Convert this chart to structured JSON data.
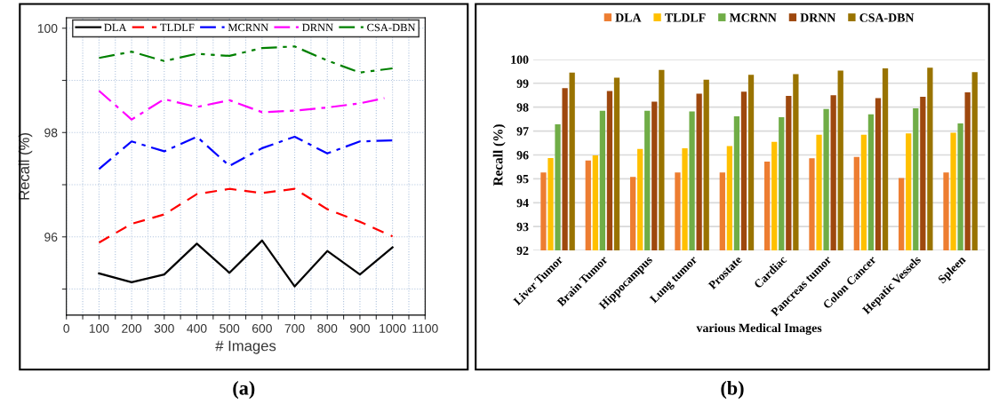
{
  "chart_data": [
    {
      "type": "line",
      "xlabel": "# Images",
      "ylabel": "Recall (%)",
      "annotations": [
        "(a)"
      ],
      "xlim": [
        0,
        1100
      ],
      "xticks": [
        0,
        {
          "value": 50,
          "label": null
        },
        100,
        {
          "value": 150,
          "label": null
        },
        200,
        {
          "value": 250,
          "label": null
        },
        300,
        {
          "value": 350,
          "label": null
        },
        400,
        {
          "value": 450,
          "label": null
        },
        500,
        {
          "value": 550,
          "label": null
        },
        600,
        {
          "value": 650,
          "label": null
        },
        700,
        {
          "value": 750,
          "label": null
        },
        800,
        {
          "value": 850,
          "label": null
        },
        900,
        {
          "value": 950,
          "label": null
        },
        1000,
        {
          "value": 1050,
          "label": null
        },
        1100
      ],
      "ylim": [
        94.5,
        100.2
      ],
      "yticks": [
        {
          "value": 95,
          "label": null
        },
        96,
        {
          "value": 97,
          "label": null
        },
        98,
        {
          "value": 99,
          "label": null
        },
        100
      ],
      "grid": true,
      "legend": "top",
      "marker": "none",
      "x": [
        100,
        200,
        300,
        400,
        500,
        600,
        700,
        800,
        900,
        1000
      ],
      "series": [
        {
          "name": "DLA",
          "color": "#000000",
          "line_style": "solid",
          "values": [
            95.3,
            95.13,
            95.28,
            95.87,
            95.31,
            95.93,
            95.05,
            95.73,
            95.28,
            95.8
          ]
        },
        {
          "name": "TLDLF",
          "color": "#ff0000",
          "line_style": "dashed",
          "values": [
            95.89,
            96.25,
            96.43,
            96.82,
            96.92,
            96.84,
            96.92,
            96.53,
            96.29,
            96.01
          ]
        },
        {
          "name": "MCRNN",
          "color": "#0000ff",
          "line_style": "dashdot",
          "values": [
            97.3,
            97.83,
            97.64,
            97.92,
            97.36,
            97.7,
            97.92,
            97.6,
            97.83,
            97.85
          ]
        },
        {
          "name": "DRNN",
          "color": "#ff00ff",
          "line_style": "dashdot",
          "x": [
            100,
            200,
            300,
            400,
            500,
            600,
            700,
            800,
            900,
            975
          ],
          "values": [
            98.8,
            98.25,
            98.64,
            98.49,
            98.62,
            98.39,
            98.42,
            98.48,
            98.56,
            98.66
          ]
        },
        {
          "name": "CSA-DBN",
          "color": "#008000",
          "line_style": "dashdotdot",
          "values": [
            99.43,
            99.55,
            99.37,
            99.51,
            99.47,
            99.62,
            99.65,
            99.38,
            99.15,
            99.23
          ]
        }
      ]
    },
    {
      "type": "bar",
      "xlabel": "various Medical Images",
      "ylabel": "Recall (%)",
      "annotations": [
        "(b)"
      ],
      "categories": [
        "Liver Tumor",
        "Brain Tumor",
        "Hippocampus",
        "Lung tumor",
        "Prostate",
        "Cardiac",
        "Pancreas tumor",
        "Colon Cancer",
        "Hepatic Vessels",
        "Spleen"
      ],
      "ylim": [
        92,
        100
      ],
      "yticks": [
        92,
        93,
        94,
        95,
        96,
        97,
        98,
        99,
        100
      ],
      "grid": "y",
      "legend": "top",
      "series": [
        {
          "name": "DLA",
          "color": "#ed7d31",
          "values": [
            95.27,
            95.77,
            95.08,
            95.27,
            95.27,
            95.72,
            95.86,
            95.92,
            95.03,
            95.27
          ]
        },
        {
          "name": "TLDLF",
          "color": "#ffc000",
          "values": [
            95.87,
            95.98,
            96.25,
            96.28,
            96.37,
            96.55,
            96.85,
            96.85,
            96.9,
            96.93
          ]
        },
        {
          "name": "MCRNN",
          "color": "#70ad47",
          "values": [
            97.28,
            97.85,
            97.85,
            97.82,
            97.62,
            97.58,
            97.92,
            97.7,
            97.95,
            97.32
          ]
        },
        {
          "name": "DRNN",
          "color": "#9e480e",
          "values": [
            98.8,
            98.68,
            98.23,
            98.56,
            98.65,
            98.47,
            98.5,
            98.38,
            98.43,
            98.62
          ]
        },
        {
          "name": "CSA-DBN",
          "color": "#997300",
          "values": [
            99.45,
            99.23,
            99.56,
            99.15,
            99.35,
            99.38,
            99.53,
            99.62,
            99.65,
            99.47
          ]
        }
      ]
    }
  ]
}
